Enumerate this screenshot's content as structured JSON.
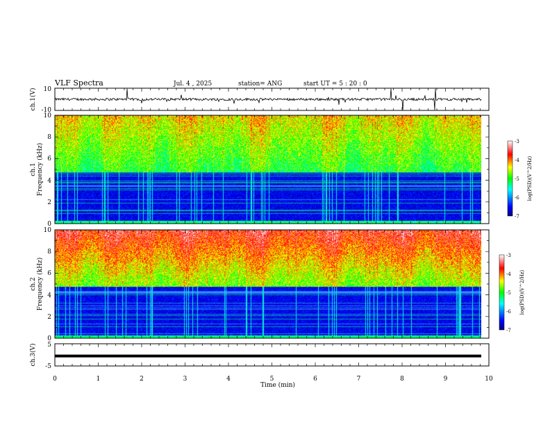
{
  "header": {
    "title": "VLF Spectra",
    "date": "Jul. 4 , 2025",
    "station": "station= ANG",
    "start_ut": "start UT = 5 : 20 : 0"
  },
  "chart_data": [
    {
      "type": "line",
      "id": "ch1-waveform",
      "ylabel": "ch.1(V)",
      "ylim": [
        -10,
        10
      ],
      "yticks": [
        "10",
        "-10"
      ],
      "xlim": [
        0,
        10
      ]
    },
    {
      "type": "heatmap",
      "id": "ch1-spectrogram",
      "ylabel_top": "ch.1",
      "ylabel": "Frequency (kHz)",
      "ylim": [
        0,
        10
      ],
      "yticks": [
        "0",
        "2",
        "4",
        "6",
        "8",
        "10"
      ],
      "xlim": [
        0,
        10
      ],
      "colorbar": {
        "label": "log(PSD)(V^2/Hz)",
        "range": [
          -7,
          -3
        ],
        "ticks": [
          "-3",
          "-4",
          "-5",
          "-6",
          "-7"
        ]
      }
    },
    {
      "type": "heatmap",
      "id": "ch2-spectrogram",
      "ylabel_top": "ch.2",
      "ylabel": "Frequency (kHz)",
      "ylim": [
        0,
        10
      ],
      "yticks": [
        "0",
        "2",
        "4",
        "6",
        "8",
        "10"
      ],
      "xlim": [
        0,
        10
      ],
      "colorbar": {
        "label": "log(PSD)(V^2/Hz)",
        "range": [
          -7,
          -3
        ],
        "ticks": [
          "-3",
          "-4",
          "-5",
          "-6",
          "-7"
        ]
      }
    },
    {
      "type": "line",
      "id": "ch3-waveform",
      "ylabel": "ch.3(V)",
      "ylim": [
        -5,
        5
      ],
      "yticks": [
        "5",
        "-5"
      ],
      "xlim": [
        0,
        10
      ],
      "xlabel": "Time (min)",
      "xticks": [
        "0",
        "1",
        "2",
        "3",
        "4",
        "5",
        "6",
        "7",
        "8",
        "9",
        "10"
      ],
      "level": -0.5
    }
  ],
  "colors": {
    "waveform": "#000000",
    "background": "#ffffff"
  }
}
